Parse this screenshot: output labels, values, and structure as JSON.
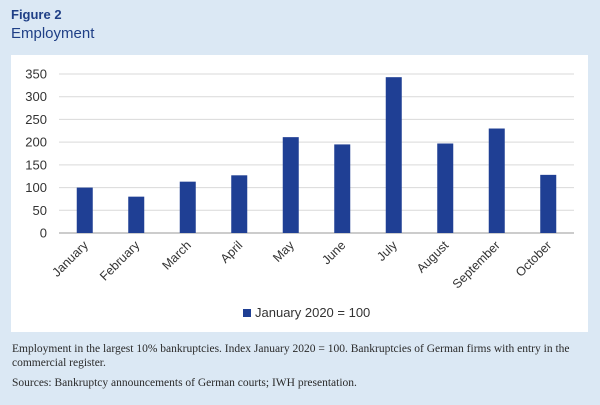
{
  "figure": {
    "label": "Figure 2",
    "title": "Employment",
    "caption": "Employment in the largest 10% bankruptcies. Index January 2020 = 100. Bankruptcies of German firms with entry in the commercial register.",
    "sources": "Sources: Bankruptcy announcements of German courts; IWH presentation."
  },
  "chart_data": {
    "type": "bar",
    "title": "",
    "xlabel": "",
    "ylabel": "",
    "categories": [
      "January",
      "February",
      "March",
      "April",
      "May",
      "June",
      "July",
      "August",
      "September",
      "October"
    ],
    "series": [
      {
        "name": "January 2020 = 100",
        "values": [
          100,
          80,
          113,
          127,
          211,
          195,
          343,
          197,
          230,
          128
        ],
        "color": "#1f3f94"
      }
    ],
    "ylim": [
      0,
      350
    ],
    "yticks": [
      "0",
      "50",
      "100",
      "150",
      "200",
      "250",
      "300",
      "350"
    ],
    "grid": true,
    "legend_position": "bottom-center"
  }
}
